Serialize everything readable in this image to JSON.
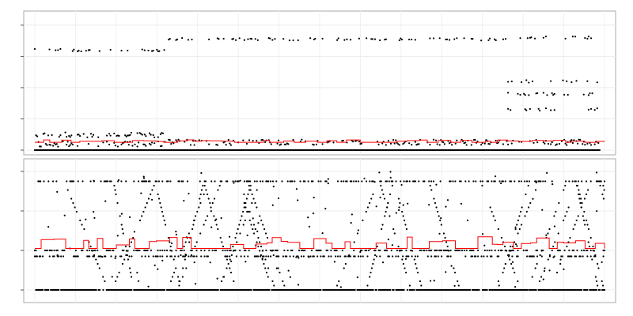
{
  "chart_data": [
    {
      "type": "scatter",
      "title": "",
      "xlabel": "",
      "ylabel": "",
      "xlim": [
        0,
        700
      ],
      "ylim": [
        0,
        4.3
      ],
      "y_ticks": [
        0,
        1,
        2,
        3,
        4
      ],
      "tick_labels_shown": false,
      "grid": true,
      "legend": "none",
      "point_color": "#000000",
      "line_color": "#ff0000",
      "series": [
        {
          "kind": "points",
          "segments": [
            {
              "x_range": [
                0,
                160
              ],
              "y_levels": [
                0,
                0.2,
                0.5,
                3.2
              ]
            },
            {
              "x_range": [
                160,
                580
              ],
              "y_levels": [
                0,
                0.25,
                3.55
              ]
            },
            {
              "x_range": [
                580,
                695
              ],
              "y_levels": [
                0,
                0.25,
                1.3,
                1.8,
                2.2,
                3.6
              ]
            }
          ]
        },
        {
          "kind": "step-line",
          "base": 0.25,
          "high": 0.33
        }
      ]
    },
    {
      "type": "scatter",
      "title": "",
      "xlabel": "",
      "ylabel": "",
      "xlim": [
        0,
        700
      ],
      "ylim": [
        -0.2,
        3.2
      ],
      "y_ticks": [
        0,
        1,
        2,
        3
      ],
      "tick_labels_shown": false,
      "grid": true,
      "legend": "none",
      "point_color": "#000000",
      "line_color": "#ff0000",
      "series": [
        {
          "kind": "points",
          "y_levels": [
            0,
            0.85,
            1.0,
            2.75
          ]
        },
        {
          "kind": "step-line",
          "base": 1.05,
          "high": 1.35
        }
      ]
    }
  ]
}
